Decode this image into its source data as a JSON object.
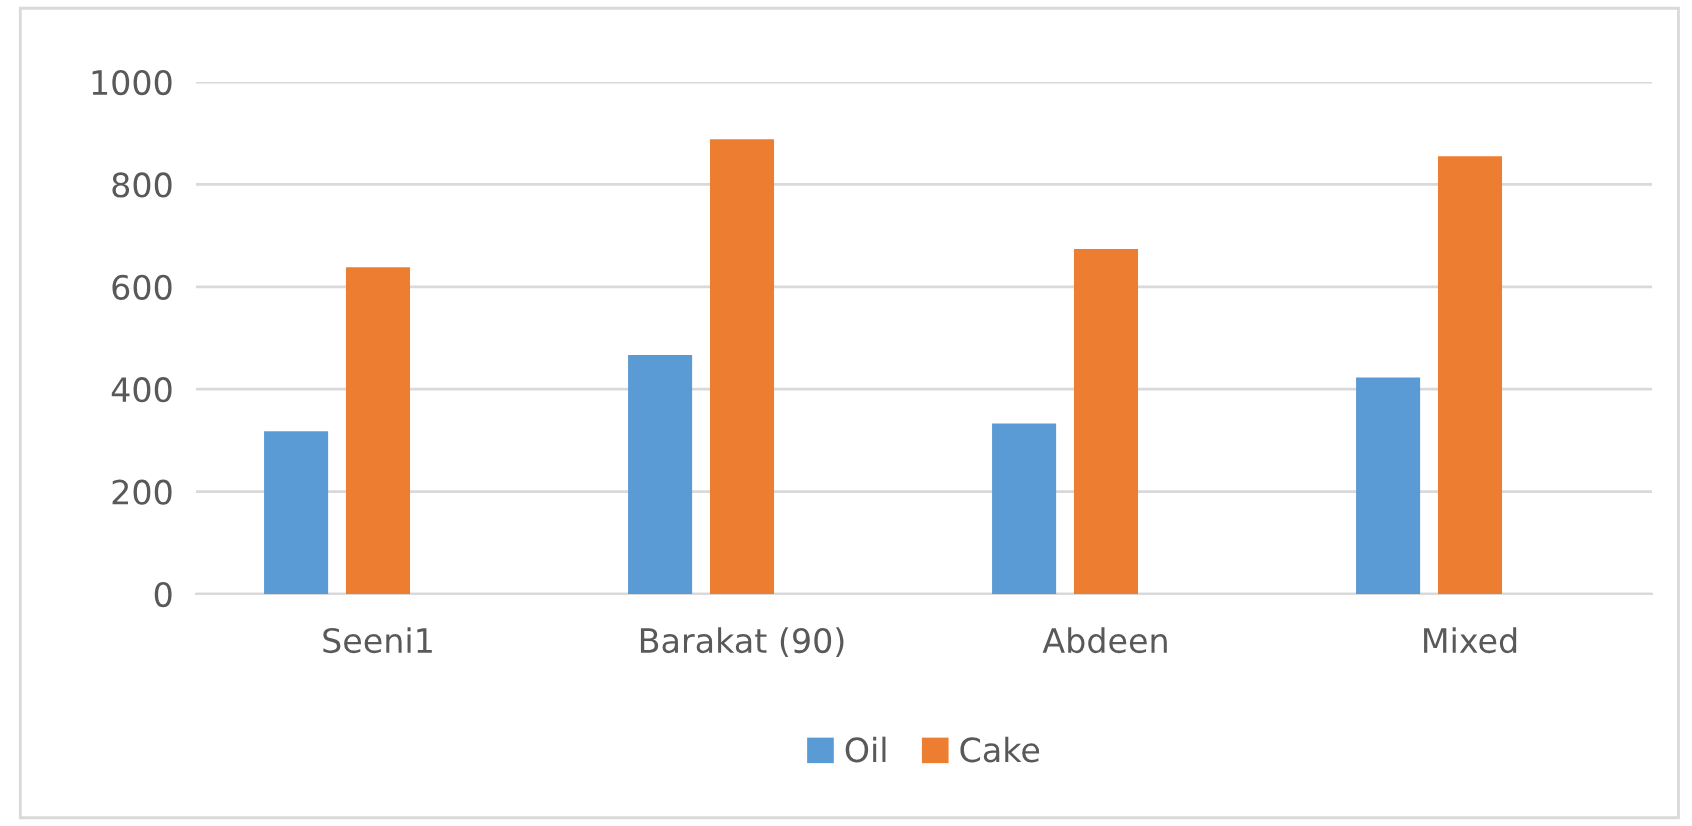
{
  "chart_data": {
    "type": "bar",
    "categories": [
      "Seeni1",
      "Barakat (90)",
      "Abdeen",
      "Mixed"
    ],
    "series": [
      {
        "name": "Oil",
        "color": "#5b9bd5",
        "values": [
          318,
          467,
          333,
          423
        ]
      },
      {
        "name": "Cake",
        "color": "#ed7d31",
        "values": [
          638,
          888,
          674,
          855
        ]
      },
      {
        "color": "#d9d9d9",
        "values": [
          null,
          null,
          null,
          null
        ]
      }
    ],
    "ylim": [
      0,
      1000
    ],
    "yticks": [
      0,
      200,
      400,
      600,
      800,
      1000
    ],
    "grid": "y",
    "legend": "bottom"
  }
}
